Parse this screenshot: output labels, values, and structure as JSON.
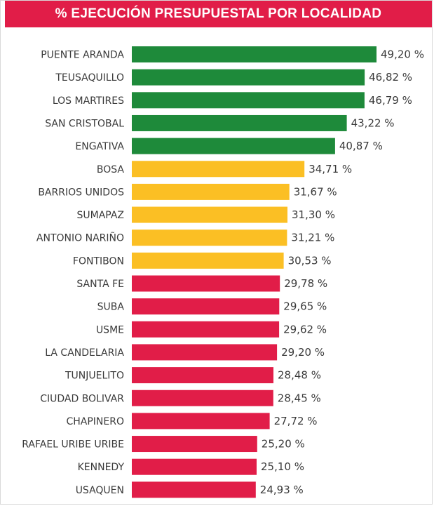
{
  "header": {
    "title": "% EJECUCIÓN PRESUPUESTAL POR LOCALIDAD"
  },
  "colors": {
    "header_bg": "#e11d48",
    "high": "#1e8a3a",
    "medium": "#fbbf24",
    "low": "#e11d48"
  },
  "chart_data": {
    "type": "bar",
    "orientation": "horizontal",
    "title": "% EJECUCIÓN PRESUPUESTAL POR LOCALIDAD",
    "xlim": [
      0,
      49.2
    ],
    "grid": false,
    "categories": [
      "PUENTE ARANDA",
      "TEUSAQUILLO",
      "LOS MARTIRES",
      "SAN CRISTOBAL",
      "ENGATIVA",
      "BOSA",
      "BARRIOS UNIDOS",
      "SUMAPAZ",
      "ANTONIO NARIÑO",
      "FONTIBON",
      "SANTA FE",
      "SUBA",
      "USME",
      "LA CANDELARIA",
      "TUNJUELITO",
      "CIUDAD BOLIVAR",
      "CHAPINERO",
      "RAFAEL URIBE URIBE",
      "KENNEDY",
      "USAQUEN"
    ],
    "values": [
      49.2,
      46.82,
      46.79,
      43.22,
      40.87,
      34.71,
      31.67,
      31.3,
      31.21,
      30.53,
      29.78,
      29.65,
      29.62,
      29.2,
      28.48,
      28.45,
      27.72,
      25.2,
      25.1,
      24.93
    ],
    "value_labels": [
      "49,20 %",
      "46,82 %",
      "46,79 %",
      "43,22 %",
      "40,87 %",
      "34,71 %",
      "31,67 %",
      "31,30 %",
      "31,21 %",
      "30,53 %",
      "29,78 %",
      "29,65 %",
      "29,62 %",
      "29,20 %",
      "28,48 %",
      "28,45 %",
      "27,72 %",
      "25,20 %",
      "25,10 %",
      "24,93 %"
    ],
    "bar_colors": [
      "#1e8a3a",
      "#1e8a3a",
      "#1e8a3a",
      "#1e8a3a",
      "#1e8a3a",
      "#fbbf24",
      "#fbbf24",
      "#fbbf24",
      "#fbbf24",
      "#fbbf24",
      "#e11d48",
      "#e11d48",
      "#e11d48",
      "#e11d48",
      "#e11d48",
      "#e11d48",
      "#e11d48",
      "#e11d48",
      "#e11d48",
      "#e11d48"
    ]
  }
}
